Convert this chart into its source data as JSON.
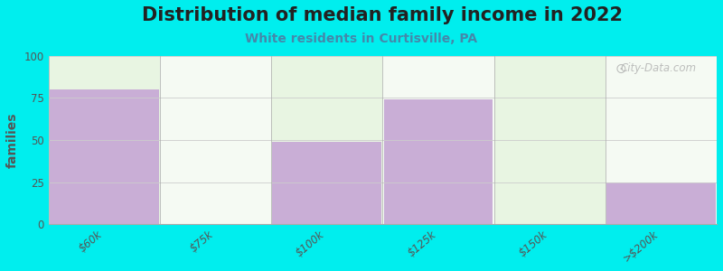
{
  "title": "Distribution of median family income in 2022",
  "subtitle": "White residents in Curtisville, PA",
  "categories": [
    "$60k",
    "$75k",
    "$100k",
    "$125k",
    "$150k",
    ">$200k"
  ],
  "values": [
    80,
    0,
    49,
    74,
    0,
    25
  ],
  "bar_color": "#c9aed6",
  "ylabel": "families",
  "ylim": [
    0,
    100
  ],
  "yticks": [
    0,
    25,
    50,
    75,
    100
  ],
  "background_outer": "#00EEEE",
  "title_fontsize": 15,
  "title_color": "#222222",
  "subtitle_fontsize": 10,
  "subtitle_color": "#4488aa",
  "watermark": "City-Data.com",
  "fig_width": 8.0,
  "fig_height": 3.0,
  "col_bg_odd": "#e8f5e2",
  "col_bg_even": "#f5faf3"
}
